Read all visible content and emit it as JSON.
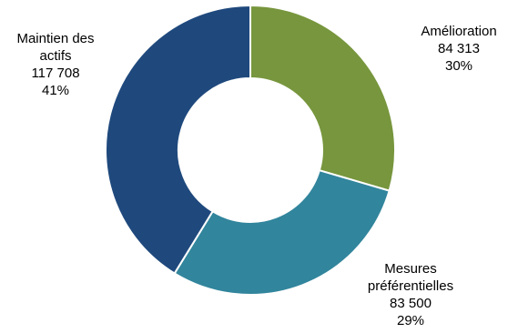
{
  "chart_data": {
    "type": "pie",
    "title": "",
    "legend": "none",
    "slices": [
      {
        "label_lines": [
          "Amélioration"
        ],
        "value": 84313,
        "value_text": "84 313",
        "percent": 30,
        "percent_text": "30%",
        "color": "#77963d"
      },
      {
        "label_lines": [
          "Mesures",
          "préférentielles"
        ],
        "value": 83500,
        "value_text": "83 500",
        "percent": 29,
        "percent_text": "29%",
        "color": "#31859c"
      },
      {
        "label_lines": [
          "Maintien des",
          "actifs"
        ],
        "value": 117708,
        "value_text": "117 708",
        "percent": 41,
        "percent_text": "41%",
        "color": "#1f497d"
      }
    ]
  }
}
